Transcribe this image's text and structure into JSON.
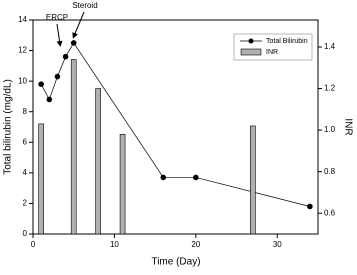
{
  "chart_data": {
    "type": "bar-line",
    "x_label": "Time (Day)",
    "y_label": "Total bilirubin (mg/dL)",
    "y2_label": "INR",
    "annotations": [
      "ERCP",
      "Steroid"
    ],
    "xlim": [
      0,
      35
    ],
    "xticks": [
      0,
      10,
      20,
      30
    ],
    "ylim": [
      0,
      14
    ],
    "yticks": [
      0,
      2,
      4,
      6,
      8,
      10,
      12,
      14
    ],
    "y2lim": [
      0.5,
      1.53
    ],
    "y2ticks": [
      {
        "value": 0.6,
        "label": "0.6"
      },
      {
        "value": 0.8,
        "label": "0.8"
      },
      {
        "value": 1.0,
        "label": "1.0"
      },
      {
        "value": 1.2,
        "label": "1.2"
      },
      {
        "value": 1.4,
        "label": "1.4"
      }
    ],
    "legend": "upper right",
    "series": [
      {
        "name": "Total Bilirubin",
        "type": "line",
        "color": "#000000",
        "x": [
          1,
          2,
          3,
          4,
          5,
          16,
          20,
          34
        ],
        "values": [
          9.8,
          8.8,
          10.3,
          11.6,
          12.5,
          3.7,
          3.7,
          1.8
        ]
      },
      {
        "name": "INR",
        "type": "bar",
        "axis": "y2",
        "color": "#b0b0b0",
        "x": [
          1,
          5,
          8,
          11,
          27
        ],
        "values": [
          1.03,
          1.34,
          1.2,
          0.98,
          1.02
        ]
      }
    ]
  }
}
